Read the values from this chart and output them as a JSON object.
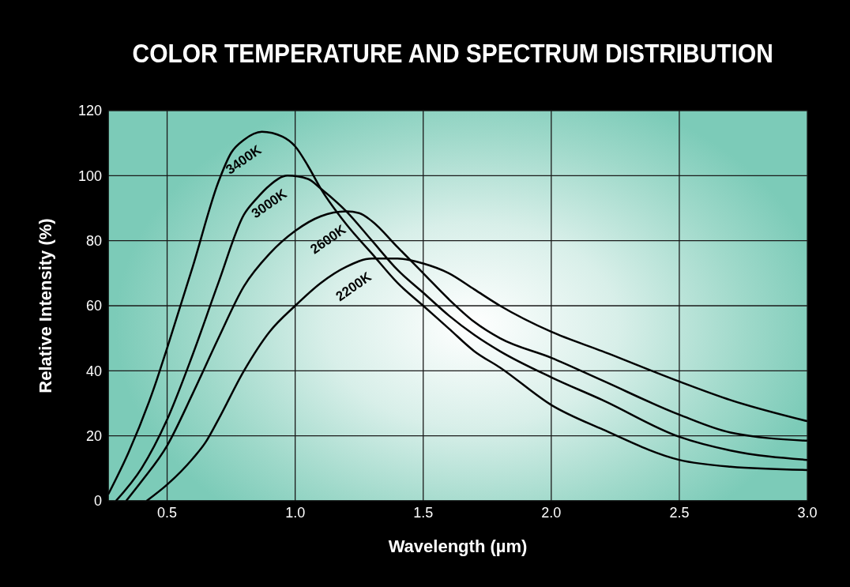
{
  "chart_data": {
    "type": "line",
    "title": "COLOR TEMPERATURE AND SPECTRUM DISTRIBUTION",
    "xlabel": "Wavelength (µm)",
    "ylabel": "Relative Intensity (%)",
    "xlim": [
      0.27,
      3.0
    ],
    "xticks": [
      0.5,
      {
        "value": 1,
        "label": "1.0"
      },
      1.5,
      {
        "value": 2,
        "label": "2.0"
      },
      2.5,
      {
        "value": 3,
        "label": "3.0"
      }
    ],
    "ylim": [
      0,
      120
    ],
    "yticks": [
      0,
      20,
      40,
      60,
      80,
      100,
      120
    ],
    "grid": true,
    "legend": false,
    "series": [
      {
        "name": "3400K",
        "color": "#000000",
        "x": [
          0.27,
          0.35,
          0.45,
          0.5,
          0.6,
          0.7,
          0.75,
          0.8,
          0.87,
          0.95,
          1.0,
          1.05,
          1.1,
          1.2,
          1.3,
          1.4,
          1.5,
          1.6,
          1.7,
          1.8,
          2.0,
          2.2,
          2.5,
          2.7,
          3.0
        ],
        "values": [
          2,
          15,
          35,
          47,
          72,
          98,
          107,
          111,
          113.5,
          112,
          109,
          103,
          96,
          85,
          76,
          67,
          60,
          53,
          46,
          41,
          29.5,
          22,
          12.6,
          10.5,
          9.5
        ]
      },
      {
        "name": "3000K",
        "color": "#000000",
        "x": [
          0.3,
          0.4,
          0.5,
          0.6,
          0.7,
          0.8,
          0.85,
          0.9,
          0.97,
          1.05,
          1.1,
          1.2,
          1.3,
          1.4,
          1.5,
          1.6,
          1.7,
          1.8,
          2.0,
          2.2,
          2.5,
          2.7,
          3.0
        ],
        "values": [
          0,
          10,
          25,
          45,
          67,
          88,
          93,
          97,
          100,
          99,
          96,
          89,
          80,
          71,
          64,
          57,
          51,
          46,
          38,
          31,
          19.7,
          15.5,
          12.6
        ]
      },
      {
        "name": "2600K",
        "color": "#000000",
        "x": [
          0.34,
          0.4,
          0.5,
          0.6,
          0.7,
          0.8,
          0.9,
          1.0,
          1.1,
          1.2,
          1.25,
          1.3,
          1.4,
          1.5,
          1.6,
          1.7,
          1.8,
          2.0,
          2.2,
          2.5,
          2.7,
          3.0
        ],
        "values": [
          0,
          6,
          17,
          33,
          50,
          66,
          76,
          83,
          87.5,
          89,
          88.5,
          86,
          78,
          70,
          62,
          55,
          50,
          44,
          37,
          26.5,
          21,
          18.5
        ]
      },
      {
        "name": "2200K",
        "color": "#000000",
        "x": [
          0.42,
          0.5,
          0.6,
          0.65,
          0.7,
          0.8,
          0.9,
          1.0,
          1.1,
          1.2,
          1.3,
          1.4,
          1.5,
          1.6,
          1.7,
          1.8,
          2.0,
          2.2,
          2.5,
          2.7,
          3.0
        ],
        "values": [
          0,
          5,
          13,
          18,
          25,
          40,
          52,
          60,
          67,
          72,
          74.5,
          74.5,
          73,
          70,
          65,
          60,
          52,
          46,
          36.7,
          31,
          24.5
        ]
      }
    ]
  }
}
